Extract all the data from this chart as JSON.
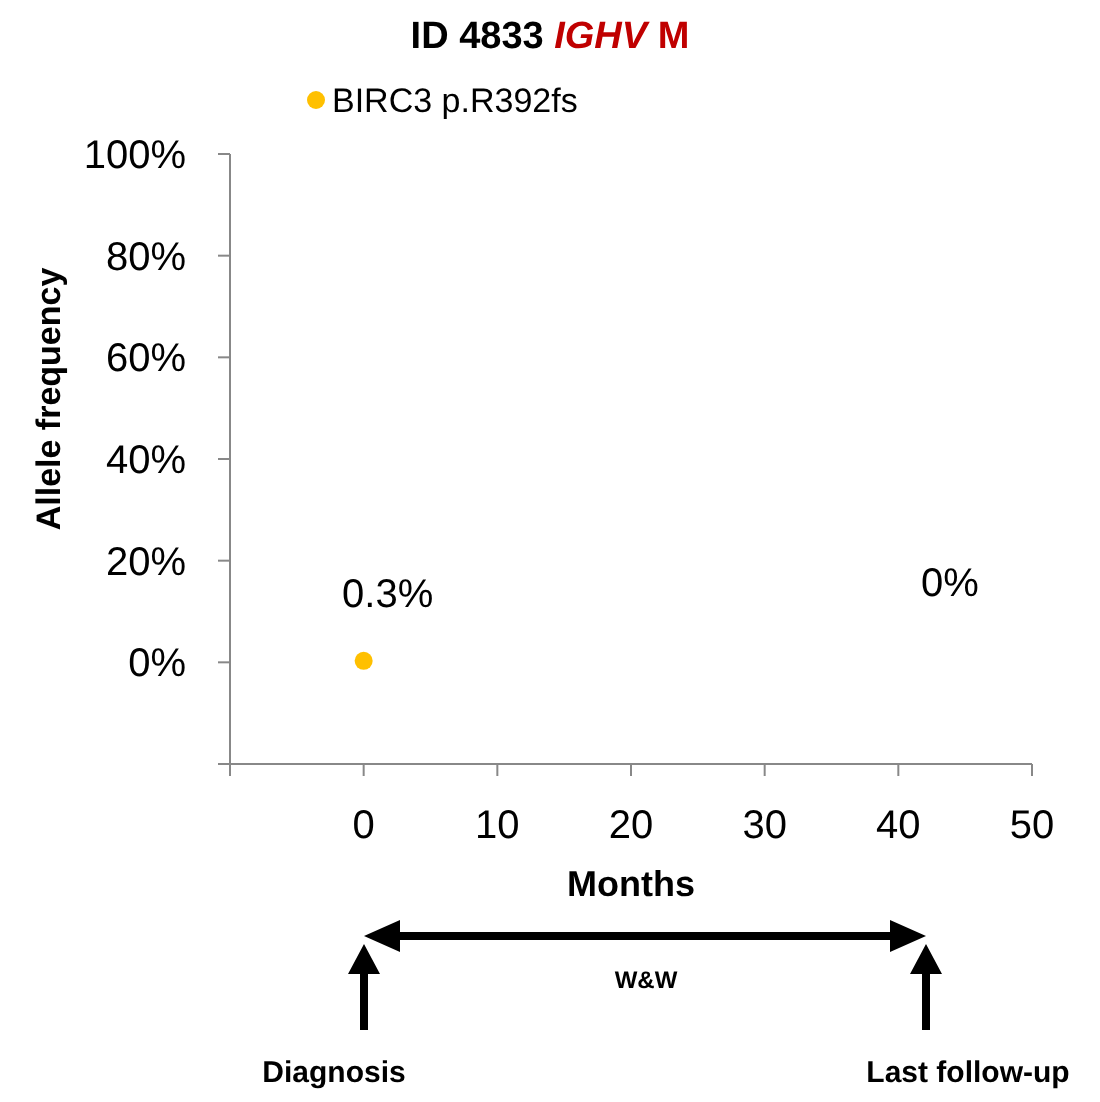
{
  "chart_data": {
    "type": "scatter",
    "title": "ID 4833 IGHV M",
    "xlabel": "Months",
    "ylabel": "Allele frequency",
    "series": [
      {
        "name": "BIRC3 p.R392fs",
        "color": "#ffc000",
        "x": [
          0
        ],
        "values": [
          0.3
        ],
        "value_labels": [
          "0.3%"
        ]
      }
    ],
    "xlim": [
      -10,
      50
    ],
    "xticks": [
      {
        "value": -10,
        "label": null
      },
      0,
      10,
      20,
      30,
      40,
      50
    ],
    "ylim": [
      -20,
      100
    ],
    "yticks": [
      {
        "value": -20,
        "label": null
      },
      {
        "value": 0,
        "label": "0%"
      },
      {
        "value": 20,
        "label": "20%"
      },
      {
        "value": 40,
        "label": "40%"
      },
      {
        "value": 60,
        "label": "60%"
      },
      {
        "value": 80,
        "label": "80%"
      },
      {
        "value": 100,
        "label": "100%"
      }
    ],
    "annotations": [
      "0%",
      "W&W",
      "Diagnosis",
      "Last follow-up"
    ],
    "legend": "top",
    "marker": "circle",
    "grid": false
  }
}
